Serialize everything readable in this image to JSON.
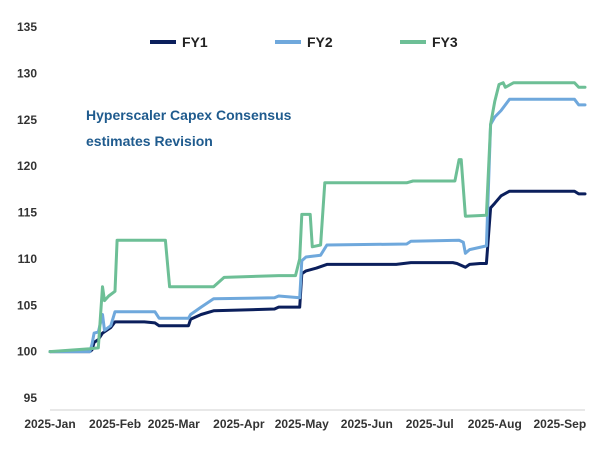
{
  "chart_data": {
    "type": "line",
    "title": "",
    "annotation": [
      "Hyperscaler Capex Consensus",
      "estimates Revision"
    ],
    "xlabel": "",
    "ylabel": "",
    "ylim": [
      95,
      135
    ],
    "yticks": [
      95,
      100,
      105,
      110,
      115,
      120,
      125,
      130,
      135
    ],
    "x_ticks": [
      {
        "date": "2025-01-01",
        "label": "2025-Jan"
      },
      {
        "date": "2025-02-01",
        "label": "2025-Feb"
      },
      {
        "date": "2025-03-01",
        "label": "2025-Mar"
      },
      {
        "date": "2025-04-01",
        "label": "2025-Apr"
      },
      {
        "date": "2025-05-01",
        "label": "2025-May"
      },
      {
        "date": "2025-06-01",
        "label": "2025-Jun"
      },
      {
        "date": "2025-07-01",
        "label": "2025-Jul"
      },
      {
        "date": "2025-08-01",
        "label": "2025-Aug"
      },
      {
        "date": "2025-09-01",
        "label": "2025-Sep"
      }
    ],
    "xlim": [
      "2025-01-01",
      "2025-09-13"
    ],
    "grid": false,
    "legend_position": "top",
    "series": [
      {
        "name": "FY1",
        "color": "#0b1f5c",
        "points": [
          [
            "2025-01-01",
            100.0
          ],
          [
            "2025-01-20",
            100.0
          ],
          [
            "2025-01-21",
            100.2
          ],
          [
            "2025-01-22",
            101.0
          ],
          [
            "2025-01-24",
            101.3
          ],
          [
            "2025-01-26",
            102.0
          ],
          [
            "2025-01-30",
            102.6
          ],
          [
            "2025-02-01",
            103.2
          ],
          [
            "2025-02-15",
            103.2
          ],
          [
            "2025-02-20",
            103.1
          ],
          [
            "2025-02-22",
            102.8
          ],
          [
            "2025-03-08",
            102.8
          ],
          [
            "2025-03-09",
            103.5
          ],
          [
            "2025-03-14",
            104.0
          ],
          [
            "2025-03-20",
            104.4
          ],
          [
            "2025-04-18",
            104.6
          ],
          [
            "2025-04-20",
            104.8
          ],
          [
            "2025-04-30",
            104.8
          ],
          [
            "2025-05-01",
            108.4
          ],
          [
            "2025-05-03",
            108.7
          ],
          [
            "2025-05-08",
            109.0
          ],
          [
            "2025-05-13",
            109.4
          ],
          [
            "2025-06-15",
            109.4
          ],
          [
            "2025-06-22",
            109.6
          ],
          [
            "2025-07-12",
            109.6
          ],
          [
            "2025-07-14",
            109.5
          ],
          [
            "2025-07-18",
            109.1
          ],
          [
            "2025-07-20",
            109.4
          ],
          [
            "2025-07-25",
            109.5
          ],
          [
            "2025-07-28",
            109.5
          ],
          [
            "2025-07-30",
            115.5
          ],
          [
            "2025-08-01",
            116.0
          ],
          [
            "2025-08-04",
            116.8
          ],
          [
            "2025-08-08",
            117.3
          ],
          [
            "2025-09-08",
            117.3
          ],
          [
            "2025-09-10",
            117.0
          ],
          [
            "2025-09-13",
            117.0
          ]
        ]
      },
      {
        "name": "FY2",
        "color": "#6fa8dc",
        "points": [
          [
            "2025-01-01",
            100.0
          ],
          [
            "2025-01-20",
            100.0
          ],
          [
            "2025-01-21",
            100.8
          ],
          [
            "2025-01-22",
            102.0
          ],
          [
            "2025-01-24",
            102.1
          ],
          [
            "2025-01-26",
            104.0
          ],
          [
            "2025-01-27",
            102.3
          ],
          [
            "2025-01-30",
            102.8
          ],
          [
            "2025-02-01",
            104.3
          ],
          [
            "2025-02-20",
            104.3
          ],
          [
            "2025-02-22",
            103.6
          ],
          [
            "2025-03-08",
            103.6
          ],
          [
            "2025-03-09",
            104.0
          ],
          [
            "2025-03-14",
            104.8
          ],
          [
            "2025-03-20",
            105.7
          ],
          [
            "2025-04-18",
            105.8
          ],
          [
            "2025-04-20",
            106.0
          ],
          [
            "2025-04-30",
            105.8
          ],
          [
            "2025-05-01",
            109.8
          ],
          [
            "2025-05-03",
            110.2
          ],
          [
            "2025-05-10",
            110.4
          ],
          [
            "2025-05-13",
            111.5
          ],
          [
            "2025-06-20",
            111.6
          ],
          [
            "2025-06-22",
            111.9
          ],
          [
            "2025-07-15",
            112.0
          ],
          [
            "2025-07-17",
            111.8
          ],
          [
            "2025-07-18",
            110.6
          ],
          [
            "2025-07-20",
            111.0
          ],
          [
            "2025-07-28",
            111.4
          ],
          [
            "2025-07-30",
            124.5
          ],
          [
            "2025-08-01",
            125.3
          ],
          [
            "2025-08-04",
            126.0
          ],
          [
            "2025-08-08",
            127.2
          ],
          [
            "2025-09-08",
            127.2
          ],
          [
            "2025-09-10",
            126.6
          ],
          [
            "2025-09-13",
            126.6
          ]
        ]
      },
      {
        "name": "FY3",
        "color": "#6dbf96",
        "points": [
          [
            "2025-01-01",
            100.0
          ],
          [
            "2025-01-20",
            100.3
          ],
          [
            "2025-01-24",
            100.4
          ],
          [
            "2025-01-26",
            107.0
          ],
          [
            "2025-01-27",
            105.5
          ],
          [
            "2025-01-29",
            106.0
          ],
          [
            "2025-02-01",
            106.5
          ],
          [
            "2025-02-02",
            112.0
          ],
          [
            "2025-02-25",
            112.0
          ],
          [
            "2025-02-27",
            107.0
          ],
          [
            "2025-03-20",
            107.0
          ],
          [
            "2025-03-22",
            107.4
          ],
          [
            "2025-03-25",
            108.0
          ],
          [
            "2025-04-20",
            108.2
          ],
          [
            "2025-04-28",
            108.2
          ],
          [
            "2025-04-30",
            110.0
          ],
          [
            "2025-05-01",
            114.8
          ],
          [
            "2025-05-05",
            114.8
          ],
          [
            "2025-05-06",
            111.3
          ],
          [
            "2025-05-10",
            111.5
          ],
          [
            "2025-05-12",
            118.2
          ],
          [
            "2025-06-20",
            118.2
          ],
          [
            "2025-06-23",
            118.4
          ],
          [
            "2025-07-13",
            118.4
          ],
          [
            "2025-07-15",
            120.7
          ],
          [
            "2025-07-16",
            120.7
          ],
          [
            "2025-07-18",
            114.6
          ],
          [
            "2025-07-28",
            114.7
          ],
          [
            "2025-07-30",
            124.5
          ],
          [
            "2025-08-01",
            127.0
          ],
          [
            "2025-08-03",
            128.8
          ],
          [
            "2025-08-05",
            129.0
          ],
          [
            "2025-08-06",
            128.5
          ],
          [
            "2025-08-10",
            129.0
          ],
          [
            "2025-09-08",
            129.0
          ],
          [
            "2025-09-10",
            128.5
          ],
          [
            "2025-09-13",
            128.5
          ]
        ]
      }
    ]
  }
}
